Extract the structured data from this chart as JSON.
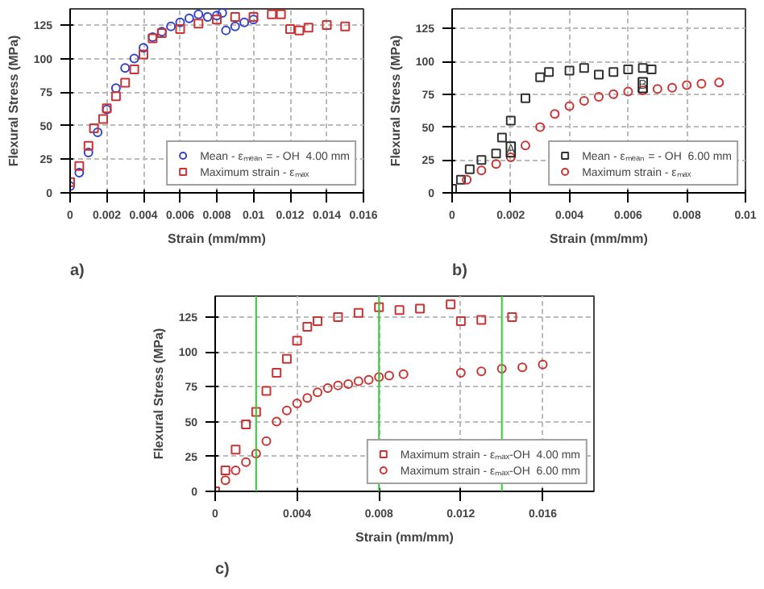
{
  "chart_data": [
    {
      "type": "scatter",
      "xlabel": "Strain (mm/mm)",
      "ylabel": "Flexural Stress (MPa)",
      "annotations": [
        "a)"
      ],
      "xlim": [
        0,
        0.016
      ],
      "xticks": [
        0,
        0.002,
        0.004,
        0.006,
        0.008,
        0.01,
        0.012,
        0.014,
        0.016
      ],
      "ylim": [
        0,
        137
      ],
      "yticks": [
        0,
        25,
        50,
        75,
        100,
        125
      ],
      "grid": true,
      "legend": "bottom right",
      "series": [
        {
          "name": "Mean - εₘₑₐₙ = - OH  4.00 mm",
          "color": "#3344cc",
          "marker": "circle",
          "x": [
            0,
            0.0005,
            0.001,
            0.0015,
            0.002,
            0.0025,
            0.003,
            0.0035,
            0.004,
            0.0045,
            0.005,
            0.0055,
            0.006,
            0.0065,
            0.007,
            0.0075,
            0.008,
            0.0083,
            0.0085,
            0.009,
            0.0095,
            0.01
          ],
          "values": [
            5,
            15,
            30,
            45,
            62,
            78,
            93,
            100,
            108,
            116,
            120,
            124,
            127,
            130,
            133,
            131,
            132,
            134,
            121,
            124,
            127,
            129
          ]
        },
        {
          "name": "Maximum strain - εₘₐₓ",
          "color": "#cc3333",
          "marker": "square",
          "x": [
            0,
            0.0005,
            0.001,
            0.0013,
            0.0018,
            0.002,
            0.0025,
            0.003,
            0.0035,
            0.004,
            0.0045,
            0.005,
            0.006,
            0.007,
            0.008,
            0.009,
            0.01,
            0.011,
            0.0115,
            0.012,
            0.0125,
            0.013,
            0.014,
            0.015
          ],
          "values": [
            8,
            20,
            35,
            48,
            55,
            63,
            72,
            82,
            92,
            103,
            115,
            119,
            122,
            126,
            129,
            131,
            131,
            133,
            133,
            122,
            121,
            123,
            125,
            124
          ]
        }
      ]
    },
    {
      "type": "scatter",
      "xlabel": "Strain (mm/mm)",
      "ylabel": "Flexural Stress (MPa)",
      "annotations": [
        "b)",
        {
          "text": "A",
          "x": 0.002,
          "y": 33
        },
        {
          "text": "B",
          "x": 0.0065,
          "y": 82
        }
      ],
      "xlim": [
        0,
        0.01
      ],
      "xticks": [
        0,
        0.002,
        0.004,
        0.006,
        0.008,
        0.01
      ],
      "ylim": [
        0,
        140
      ],
      "yticks": [
        0,
        25,
        50,
        75,
        100,
        125
      ],
      "grid": true,
      "legend": "bottom right",
      "series": [
        {
          "name": "Mean - εₘₑₐₙ = - OH  6.00 mm",
          "color": "#333333",
          "marker": "square",
          "x": [
            0,
            0.0003,
            0.0006,
            0.001,
            0.0015,
            0.0017,
            0.002,
            0.0025,
            0.003,
            0.0033,
            0.004,
            0.0045,
            0.005,
            0.0055,
            0.006,
            0.0065,
            0.0068
          ],
          "values": [
            3,
            10,
            18,
            25,
            30,
            42,
            55,
            72,
            88,
            92,
            93,
            95,
            90,
            92,
            94,
            95,
            94
          ]
        },
        {
          "name": "Maximum strain - εₘₐₓ",
          "color": "#cc3333",
          "marker": "circle",
          "x": [
            0.0005,
            0.001,
            0.0015,
            0.002,
            0.0025,
            0.003,
            0.0035,
            0.004,
            0.0045,
            0.005,
            0.0055,
            0.006,
            0.0065,
            0.007,
            0.0075,
            0.008,
            0.0085,
            0.0091
          ],
          "values": [
            10,
            17,
            22,
            27,
            36,
            50,
            60,
            66,
            70,
            73,
            75,
            77,
            78,
            79,
            80,
            82,
            83,
            84
          ]
        }
      ]
    },
    {
      "type": "scatter",
      "xlabel": "Strain (mm/mm)",
      "ylabel": "Flexural Stress (MPa)",
      "annotations": [
        "c)"
      ],
      "xlim": [
        0,
        0.0185
      ],
      "xticks": [
        0,
        0.004,
        0.008,
        0.012,
        0.016
      ],
      "ylim": [
        0,
        140
      ],
      "yticks": [
        0,
        25,
        50,
        75,
        100,
        125
      ],
      "grid": true,
      "legend": "bottom right",
      "ref_lines": [
        {
          "axis": "x",
          "value": 0.002,
          "color": "#33cc33"
        },
        {
          "axis": "x",
          "value": 0.008,
          "color": "#33cc33"
        },
        {
          "axis": "x",
          "value": 0.014,
          "color": "#33cc33"
        }
      ],
      "series": [
        {
          "name": "Maximum strain - εₘₐₓ-OH  4.00 mm",
          "color": "#cc3333",
          "marker": "square",
          "x": [
            0,
            0.0005,
            0.001,
            0.0015,
            0.002,
            0.0025,
            0.003,
            0.0035,
            0.004,
            0.0045,
            0.005,
            0.006,
            0.007,
            0.008,
            0.009,
            0.01,
            0.0115,
            0.012,
            0.013,
            0.0145
          ],
          "values": [
            0,
            15,
            30,
            48,
            57,
            72,
            85,
            95,
            108,
            118,
            122,
            125,
            128,
            132,
            130,
            131,
            134,
            122,
            123,
            125
          ]
        },
        {
          "name": "Maximum strain - εₘₐₓ-OH  6.00 mm",
          "color": "#cc3333",
          "marker": "circle",
          "x": [
            0.0005,
            0.001,
            0.0015,
            0.002,
            0.0025,
            0.003,
            0.0035,
            0.004,
            0.0045,
            0.005,
            0.0055,
            0.006,
            0.0065,
            0.007,
            0.0075,
            0.008,
            0.0085,
            0.0092,
            0.012,
            0.013,
            0.014,
            0.015,
            0.016
          ],
          "values": [
            8,
            15,
            21,
            27,
            36,
            50,
            58,
            63,
            67,
            71,
            74,
            76,
            77,
            79,
            80,
            82,
            83,
            84,
            85,
            86,
            88,
            89,
            91
          ]
        }
      ]
    }
  ]
}
